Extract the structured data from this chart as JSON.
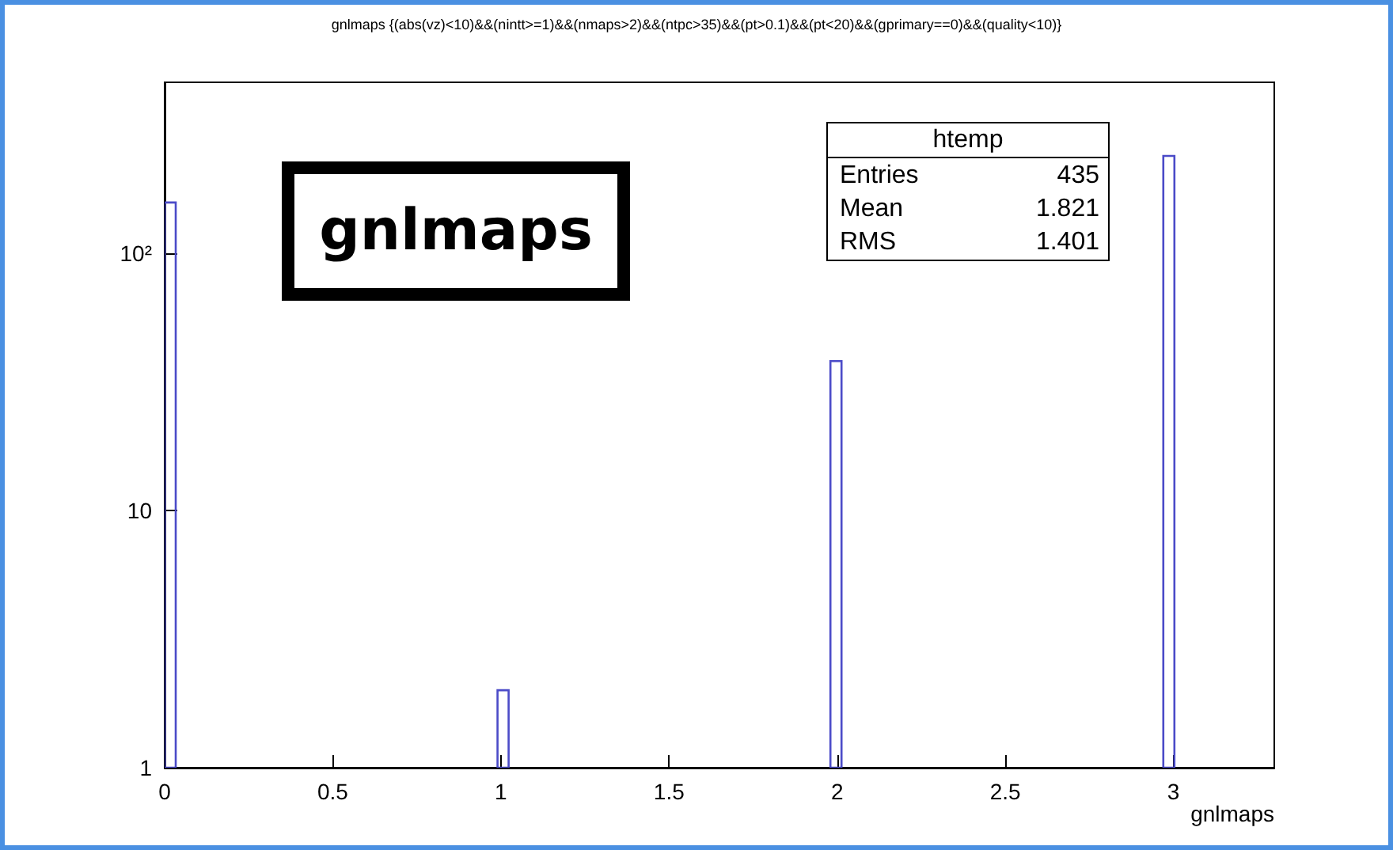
{
  "chart_data": {
    "type": "histogram",
    "title": "gnlmaps {(abs(vz)<10)&&(nintt>=1)&&(nmaps>2)&&(ntpc>35)&&(pt>0.1)&&(pt<20)&&(gprimary==0)&&(quality<10)}",
    "xlabel": "gnlmaps",
    "bins": [
      0,
      0.033,
      0.99,
      1.023,
      1.98,
      2.013,
      2.97,
      3.003
    ],
    "values": [
      157,
      null,
      2,
      null,
      38,
      null,
      238
    ],
    "color": "#4b4bc8",
    "log": "y",
    "xlim": [
      0,
      3.3
    ],
    "xticks": [
      0,
      0.5,
      1,
      1.5,
      2,
      2.5,
      3
    ],
    "ylim": [
      1,
      460
    ],
    "yticks": [
      1,
      10,
      {
        "value": 100,
        "label": "10²"
      }
    ],
    "annotations": [
      "gnlmaps",
      "htemp",
      "Entries",
      "435",
      "Mean",
      "1.821",
      "RMS",
      "1.401"
    ]
  }
}
